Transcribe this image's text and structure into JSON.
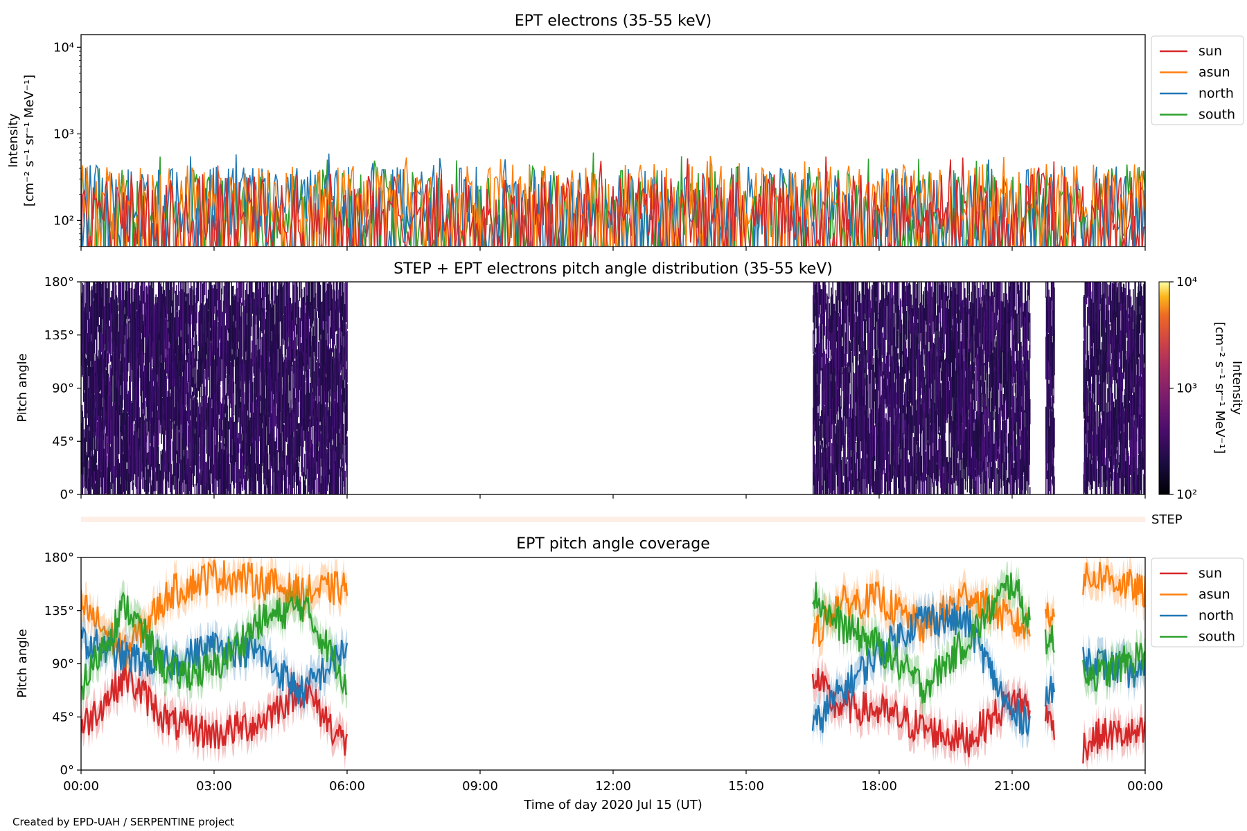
{
  "figure": {
    "credit": "Created by EPD-UAH / SERPENTINE project",
    "xlabel": "Time of day 2020 Jul 15 (UT)",
    "xticks": [
      "00:00",
      "03:00",
      "06:00",
      "09:00",
      "12:00",
      "15:00",
      "18:00",
      "21:00",
      "00:00"
    ]
  },
  "colors": {
    "sun": "#d62728",
    "asun": "#ff7f0e",
    "north": "#1f77b4",
    "south": "#2ca02c",
    "step_bar": "#fdeee6"
  },
  "chart_data": [
    {
      "type": "line",
      "title": "EPT electrons (35-55 keV)",
      "ylabel_line1": "Intensity",
      "ylabel_line2": "[cm⁻² s⁻¹ sr⁻¹ MeV⁻¹]",
      "yscale": "log",
      "ylim": [
        50,
        14000
      ],
      "yticks": [
        {
          "value": 100,
          "label": "10²"
        },
        {
          "value": 1000,
          "label": "10³"
        },
        {
          "value": 10000,
          "label": "10⁴"
        }
      ],
      "xlim_hours": [
        0,
        24
      ],
      "legend_position": "outside-right",
      "series": [
        {
          "name": "sun",
          "typical_range": [
            50,
            350
          ],
          "peak": 550
        },
        {
          "name": "asun",
          "typical_range": [
            90,
            450
          ],
          "peak": 580
        },
        {
          "name": "north",
          "typical_range": [
            60,
            420
          ],
          "peak": 600
        },
        {
          "name": "south",
          "typical_range": [
            60,
            420
          ],
          "peak": 620
        }
      ]
    },
    {
      "type": "heatmap",
      "title": "STEP + EPT electrons pitch angle distribution (35-55 keV)",
      "ylabel": "Pitch angle",
      "ylim": [
        0,
        180
      ],
      "yticks": [
        "0°",
        "45°",
        "90°",
        "135°",
        "180°"
      ],
      "colorbar": {
        "label": "Intensity",
        "units": "[cm⁻² s⁻¹ sr⁻¹ MeV⁻¹]",
        "scale": "log",
        "range": [
          100,
          10000
        ],
        "ticks": [
          "10²",
          "10³",
          "10⁴"
        ]
      },
      "data_intervals_hours": [
        [
          0,
          6.0
        ],
        [
          16.5,
          21.4
        ],
        [
          21.75,
          21.95
        ],
        [
          22.6,
          24
        ]
      ],
      "step_label": "STEP"
    },
    {
      "type": "line",
      "title": "EPT pitch angle coverage",
      "ylabel": "Pitch angle",
      "ylim": [
        0,
        180
      ],
      "yticks": [
        "0°",
        "45°",
        "90°",
        "135°",
        "180°"
      ],
      "legend_position": "outside-right",
      "x_hours": [
        0,
        1,
        2,
        3,
        4,
        5,
        6,
        16.5,
        17,
        18,
        19,
        20,
        21,
        21.4,
        22.6,
        23,
        24
      ],
      "series": [
        {
          "name": "sun",
          "values": [
            35,
            80,
            40,
            30,
            40,
            70,
            20,
            80,
            55,
            50,
            35,
            25,
            60,
            55,
            20,
            30,
            30
          ]
        },
        {
          "name": "asun",
          "values": [
            140,
            100,
            150,
            165,
            160,
            150,
            155,
            110,
            140,
            145,
            120,
            150,
            125,
            120,
            160,
            165,
            150
          ]
        },
        {
          "name": "north",
          "values": [
            110,
            95,
            90,
            105,
            100,
            65,
            105,
            35,
            60,
            100,
            130,
            125,
            45,
            45,
            95,
            90,
            80
          ]
        },
        {
          "name": "south",
          "values": [
            70,
            140,
            80,
            85,
            125,
            140,
            75,
            150,
            125,
            105,
            70,
            110,
            160,
            125,
            85,
            80,
            100
          ]
        }
      ]
    }
  ]
}
